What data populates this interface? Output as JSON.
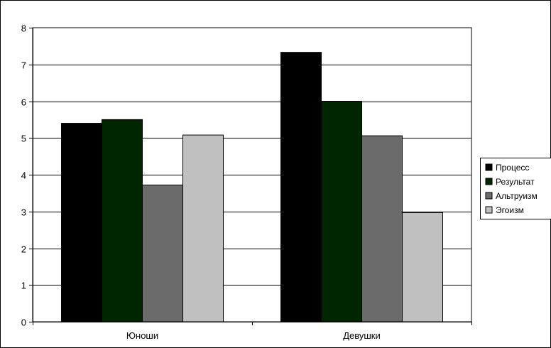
{
  "chart_data": {
    "type": "bar",
    "categories": [
      "Юноши",
      "Девушки"
    ],
    "series": [
      {
        "name": "Процесс",
        "values": [
          5.4,
          7.33
        ],
        "color": "#000000"
      },
      {
        "name": "Результат",
        "values": [
          5.5,
          6.0
        ],
        "color": "#002600"
      },
      {
        "name": "Альтруизм",
        "values": [
          3.72,
          5.06
        ],
        "color": "#6b6b6b"
      },
      {
        "name": "Эгоизм",
        "values": [
          5.08,
          2.97
        ],
        "color": "#c0c0c0"
      }
    ],
    "title": "",
    "xlabel": "",
    "ylabel": "",
    "ylim": [
      0,
      8
    ],
    "yticks": [
      "0",
      "1",
      "2",
      "3",
      "4",
      "5",
      "6",
      "7",
      "8"
    ],
    "grid": true,
    "legend_position": "right"
  }
}
